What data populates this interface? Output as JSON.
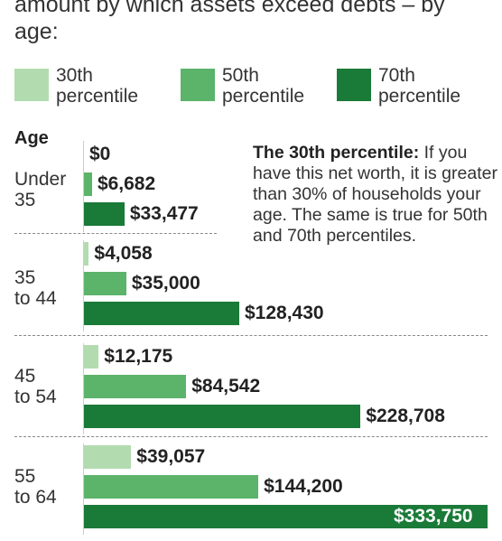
{
  "subtitle": "amount by which assets exceed debts – by age:",
  "legend": [
    {
      "label": "30th\npercentile",
      "color": "#b3dbb0"
    },
    {
      "label": "50th\npercentile",
      "color": "#5cb36a"
    },
    {
      "label": "70th\npercentile",
      "color": "#1a7a38"
    }
  ],
  "age_heading": "Age",
  "note": {
    "bold": "The 30th percentile:",
    "text": " If you have this net worth, it is greater than 30% of households your age. The same is true for 50th and 70th percentiles."
  },
  "chart_data": {
    "type": "bar",
    "orientation": "horizontal",
    "categories": [
      "Under 35",
      "35 to 44",
      "45 to 54",
      "55 to 64"
    ],
    "series": [
      {
        "name": "30th percentile",
        "values": [
          0,
          4058,
          12175,
          39057
        ],
        "labels": [
          "$0",
          "$4,058",
          "$12,175",
          "$39,057"
        ]
      },
      {
        "name": "50th percentile",
        "values": [
          6682,
          35000,
          84542,
          144200
        ],
        "labels": [
          "$6,682",
          "$35,000",
          "$84,542",
          "$144,200"
        ]
      },
      {
        "name": "70th percentile",
        "values": [
          33477,
          128430,
          228708,
          333750
        ],
        "labels": [
          "$33,477",
          "$128,430",
          "$228,708",
          "$333,750"
        ]
      }
    ],
    "title": "",
    "xlabel": "",
    "ylabel": "Age",
    "xlim": [
      0,
      333750
    ],
    "grid": false,
    "legend_position": "top"
  }
}
